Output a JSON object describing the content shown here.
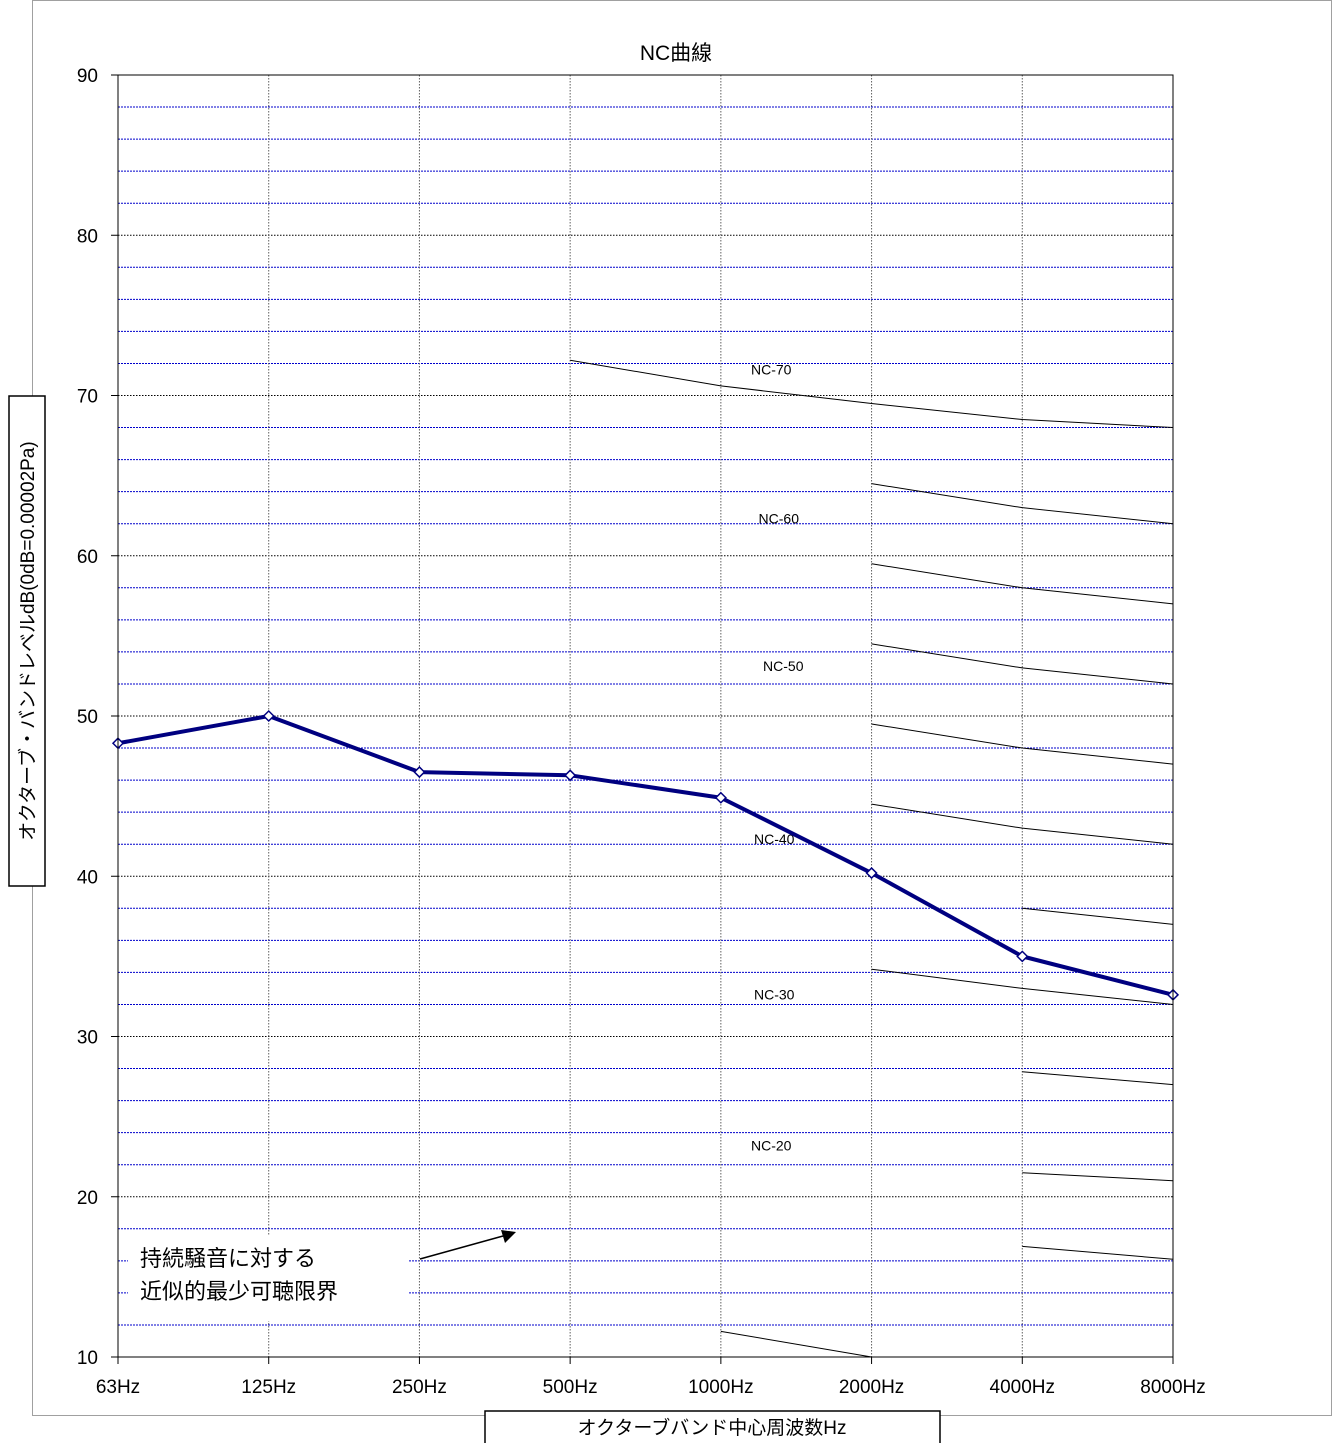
{
  "chart_data": {
    "type": "line",
    "title": "NC曲線",
    "xlabel": "オクターブバンド中心周波数Hz",
    "ylabel": "オクターブ・バンドレベルdB(0dB=0.00002Pa)",
    "categories": [
      "63Hz",
      "125Hz",
      "250Hz",
      "500Hz",
      "1000Hz",
      "2000Hz",
      "4000Hz",
      "8000Hz"
    ],
    "ylim": [
      10,
      90
    ],
    "yticks": [
      10,
      20,
      30,
      40,
      50,
      60,
      70,
      80,
      90
    ],
    "grid": true,
    "series": [
      {
        "values": [
          48.3,
          50.0,
          46.5,
          46.3,
          44.9,
          40.2,
          35.0,
          32.6
        ],
        "color": "#000080",
        "marker": "diamond"
      }
    ],
    "reference_curves": [
      {
        "label": "NC-70",
        "points": [
          [
            3,
            72.2
          ],
          [
            4,
            70.6
          ],
          [
            5,
            69.5
          ],
          [
            6,
            68.5
          ],
          [
            7,
            68.0
          ]
        ]
      },
      {
        "points": [
          [
            5,
            64.5
          ],
          [
            6,
            63.0
          ],
          [
            7,
            62.0
          ]
        ]
      },
      {
        "label": "NC-60",
        "points": [
          [
            5,
            59.5
          ],
          [
            6,
            58.0
          ],
          [
            7,
            57.0
          ]
        ]
      },
      {
        "points": [
          [
            5,
            54.5
          ],
          [
            6,
            53.0
          ],
          [
            7,
            52.0
          ]
        ]
      },
      {
        "label": "NC-50",
        "points": [
          [
            5,
            49.5
          ],
          [
            6,
            48.0
          ],
          [
            7,
            47.0
          ]
        ]
      },
      {
        "points": [
          [
            5,
            44.5
          ],
          [
            6,
            43.0
          ],
          [
            7,
            42.0
          ]
        ]
      },
      {
        "label": "NC-40",
        "points": [
          [
            6,
            38.0
          ],
          [
            7,
            37.0
          ]
        ]
      },
      {
        "points": [
          [
            5,
            34.2
          ],
          [
            6,
            33.0
          ],
          [
            7,
            32.0
          ]
        ]
      },
      {
        "label": "NC-30",
        "points": [
          [
            6,
            27.8
          ],
          [
            7,
            27.0
          ]
        ]
      },
      {
        "label": "NC-20",
        "points": [
          [
            6,
            21.5
          ],
          [
            7,
            21.0
          ]
        ]
      },
      {
        "points": [
          [
            6,
            16.9
          ],
          [
            7,
            16.1
          ]
        ]
      },
      {
        "points": [
          [
            4,
            11.6
          ],
          [
            5,
            10.0
          ]
        ]
      }
    ],
    "curve_labels": [
      {
        "text": "NC-70",
        "x": 4.2,
        "y": 71.3
      },
      {
        "text": "NC-60",
        "x": 4.25,
        "y": 62.0
      },
      {
        "text": "NC-50",
        "x": 4.28,
        "y": 52.8
      },
      {
        "text": "NC-40",
        "x": 4.22,
        "y": 42.0
      },
      {
        "text": "NC-30",
        "x": 4.22,
        "y": 32.3
      },
      {
        "text": "NC-20",
        "x": 4.2,
        "y": 22.9
      }
    ],
    "annotation": {
      "lines": [
        "持続騒音に対する",
        "近似的最少可聴限界"
      ]
    },
    "colors": {
      "series": "#000080",
      "major_grid": "#000000",
      "minor_grid": "#0000cc",
      "vertical_grid": "#606060",
      "nc_curve": "#000000"
    }
  }
}
